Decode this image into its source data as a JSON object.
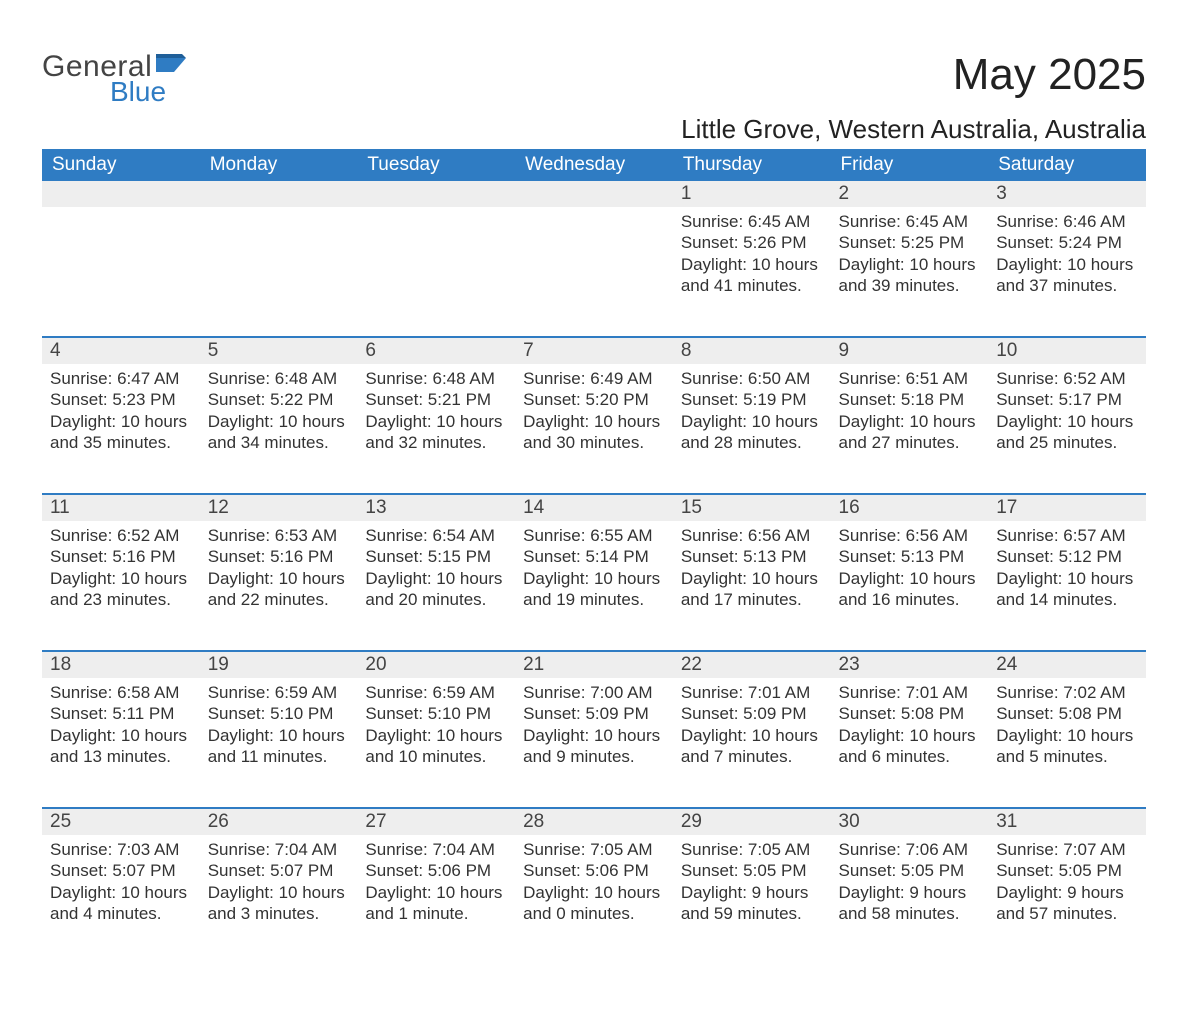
{
  "logo": {
    "word1": "General",
    "word2": "Blue",
    "brand_color": "#2f7cc3",
    "text_color": "#444444"
  },
  "title": "May 2025",
  "location": "Little Grove, Western Australia, Australia",
  "header_bg": "#2f7cc3",
  "header_text_color": "#ffffff",
  "daynum_bg": "#eeeeee",
  "row_border_color": "#2f7cc3",
  "body_text_color": "#333333",
  "font_family": "Arial",
  "weekdays": [
    "Sunday",
    "Monday",
    "Tuesday",
    "Wednesday",
    "Thursday",
    "Friday",
    "Saturday"
  ],
  "weeks": [
    [
      null,
      null,
      null,
      null,
      {
        "n": "1",
        "sunrise": "Sunrise: 6:45 AM",
        "sunset": "Sunset: 5:26 PM",
        "daylight": "Daylight: 10 hours and 41 minutes."
      },
      {
        "n": "2",
        "sunrise": "Sunrise: 6:45 AM",
        "sunset": "Sunset: 5:25 PM",
        "daylight": "Daylight: 10 hours and 39 minutes."
      },
      {
        "n": "3",
        "sunrise": "Sunrise: 6:46 AM",
        "sunset": "Sunset: 5:24 PM",
        "daylight": "Daylight: 10 hours and 37 minutes."
      }
    ],
    [
      {
        "n": "4",
        "sunrise": "Sunrise: 6:47 AM",
        "sunset": "Sunset: 5:23 PM",
        "daylight": "Daylight: 10 hours and 35 minutes."
      },
      {
        "n": "5",
        "sunrise": "Sunrise: 6:48 AM",
        "sunset": "Sunset: 5:22 PM",
        "daylight": "Daylight: 10 hours and 34 minutes."
      },
      {
        "n": "6",
        "sunrise": "Sunrise: 6:48 AM",
        "sunset": "Sunset: 5:21 PM",
        "daylight": "Daylight: 10 hours and 32 minutes."
      },
      {
        "n": "7",
        "sunrise": "Sunrise: 6:49 AM",
        "sunset": "Sunset: 5:20 PM",
        "daylight": "Daylight: 10 hours and 30 minutes."
      },
      {
        "n": "8",
        "sunrise": "Sunrise: 6:50 AM",
        "sunset": "Sunset: 5:19 PM",
        "daylight": "Daylight: 10 hours and 28 minutes."
      },
      {
        "n": "9",
        "sunrise": "Sunrise: 6:51 AM",
        "sunset": "Sunset: 5:18 PM",
        "daylight": "Daylight: 10 hours and 27 minutes."
      },
      {
        "n": "10",
        "sunrise": "Sunrise: 6:52 AM",
        "sunset": "Sunset: 5:17 PM",
        "daylight": "Daylight: 10 hours and 25 minutes."
      }
    ],
    [
      {
        "n": "11",
        "sunrise": "Sunrise: 6:52 AM",
        "sunset": "Sunset: 5:16 PM",
        "daylight": "Daylight: 10 hours and 23 minutes."
      },
      {
        "n": "12",
        "sunrise": "Sunrise: 6:53 AM",
        "sunset": "Sunset: 5:16 PM",
        "daylight": "Daylight: 10 hours and 22 minutes."
      },
      {
        "n": "13",
        "sunrise": "Sunrise: 6:54 AM",
        "sunset": "Sunset: 5:15 PM",
        "daylight": "Daylight: 10 hours and 20 minutes."
      },
      {
        "n": "14",
        "sunrise": "Sunrise: 6:55 AM",
        "sunset": "Sunset: 5:14 PM",
        "daylight": "Daylight: 10 hours and 19 minutes."
      },
      {
        "n": "15",
        "sunrise": "Sunrise: 6:56 AM",
        "sunset": "Sunset: 5:13 PM",
        "daylight": "Daylight: 10 hours and 17 minutes."
      },
      {
        "n": "16",
        "sunrise": "Sunrise: 6:56 AM",
        "sunset": "Sunset: 5:13 PM",
        "daylight": "Daylight: 10 hours and 16 minutes."
      },
      {
        "n": "17",
        "sunrise": "Sunrise: 6:57 AM",
        "sunset": "Sunset: 5:12 PM",
        "daylight": "Daylight: 10 hours and 14 minutes."
      }
    ],
    [
      {
        "n": "18",
        "sunrise": "Sunrise: 6:58 AM",
        "sunset": "Sunset: 5:11 PM",
        "daylight": "Daylight: 10 hours and 13 minutes."
      },
      {
        "n": "19",
        "sunrise": "Sunrise: 6:59 AM",
        "sunset": "Sunset: 5:10 PM",
        "daylight": "Daylight: 10 hours and 11 minutes."
      },
      {
        "n": "20",
        "sunrise": "Sunrise: 6:59 AM",
        "sunset": "Sunset: 5:10 PM",
        "daylight": "Daylight: 10 hours and 10 minutes."
      },
      {
        "n": "21",
        "sunrise": "Sunrise: 7:00 AM",
        "sunset": "Sunset: 5:09 PM",
        "daylight": "Daylight: 10 hours and 9 minutes."
      },
      {
        "n": "22",
        "sunrise": "Sunrise: 7:01 AM",
        "sunset": "Sunset: 5:09 PM",
        "daylight": "Daylight: 10 hours and 7 minutes."
      },
      {
        "n": "23",
        "sunrise": "Sunrise: 7:01 AM",
        "sunset": "Sunset: 5:08 PM",
        "daylight": "Daylight: 10 hours and 6 minutes."
      },
      {
        "n": "24",
        "sunrise": "Sunrise: 7:02 AM",
        "sunset": "Sunset: 5:08 PM",
        "daylight": "Daylight: 10 hours and 5 minutes."
      }
    ],
    [
      {
        "n": "25",
        "sunrise": "Sunrise: 7:03 AM",
        "sunset": "Sunset: 5:07 PM",
        "daylight": "Daylight: 10 hours and 4 minutes."
      },
      {
        "n": "26",
        "sunrise": "Sunrise: 7:04 AM",
        "sunset": "Sunset: 5:07 PM",
        "daylight": "Daylight: 10 hours and 3 minutes."
      },
      {
        "n": "27",
        "sunrise": "Sunrise: 7:04 AM",
        "sunset": "Sunset: 5:06 PM",
        "daylight": "Daylight: 10 hours and 1 minute."
      },
      {
        "n": "28",
        "sunrise": "Sunrise: 7:05 AM",
        "sunset": "Sunset: 5:06 PM",
        "daylight": "Daylight: 10 hours and 0 minutes."
      },
      {
        "n": "29",
        "sunrise": "Sunrise: 7:05 AM",
        "sunset": "Sunset: 5:05 PM",
        "daylight": "Daylight: 9 hours and 59 minutes."
      },
      {
        "n": "30",
        "sunrise": "Sunrise: 7:06 AM",
        "sunset": "Sunset: 5:05 PM",
        "daylight": "Daylight: 9 hours and 58 minutes."
      },
      {
        "n": "31",
        "sunrise": "Sunrise: 7:07 AM",
        "sunset": "Sunset: 5:05 PM",
        "daylight": "Daylight: 9 hours and 57 minutes."
      }
    ]
  ]
}
